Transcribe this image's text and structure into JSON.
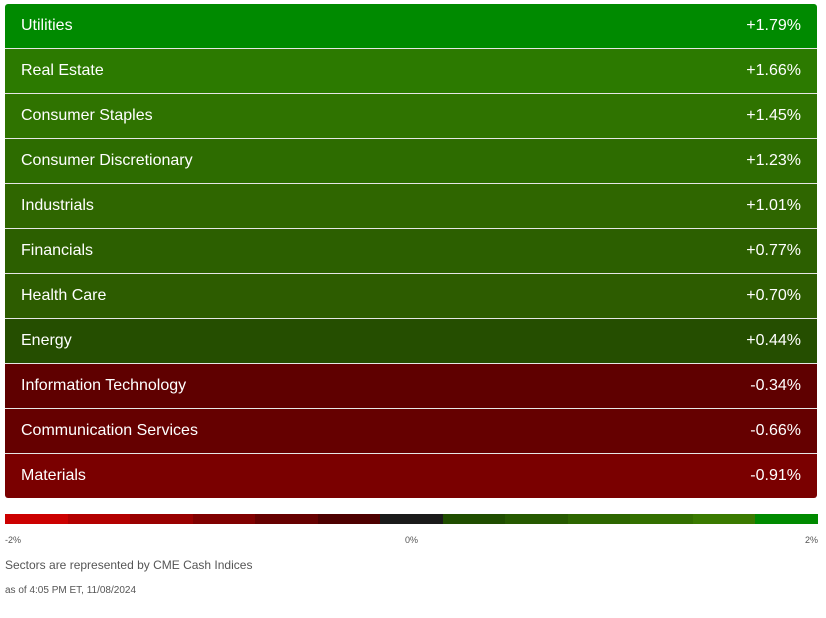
{
  "sectors": [
    {
      "name": "Utilities",
      "change": "+1.79%",
      "color": "#008a00"
    },
    {
      "name": "Real Estate",
      "change": "+1.66%",
      "color": "#2c7a00"
    },
    {
      "name": "Consumer Staples",
      "change": "+1.45%",
      "color": "#2f7300"
    },
    {
      "name": "Consumer Discretionary",
      "change": "+1.23%",
      "color": "#2d6c00"
    },
    {
      "name": "Industrials",
      "change": "+1.01%",
      "color": "#2f6600"
    },
    {
      "name": "Financials",
      "change": "+0.77%",
      "color": "#2c5f00"
    },
    {
      "name": "Health Care",
      "change": "+0.70%",
      "color": "#2d5c00"
    },
    {
      "name": "Energy",
      "change": "+0.44%",
      "color": "#254e00"
    },
    {
      "name": "Information Technology",
      "change": "-0.34%",
      "color": "#5f0000"
    },
    {
      "name": "Communication Services",
      "change": "-0.66%",
      "color": "#650000"
    },
    {
      "name": "Materials",
      "change": "-0.91%",
      "color": "#7a0000"
    }
  ],
  "scale": {
    "colors": [
      "#cc0000",
      "#b30000",
      "#990000",
      "#800000",
      "#660000",
      "#4d0000",
      "#1a1a1a",
      "#1f4d00",
      "#265900",
      "#2d6600",
      "#336f00",
      "#3a7a00",
      "#008a00"
    ],
    "label_min": "-2%",
    "label_mid": "0%",
    "label_max": "2%"
  },
  "footer": {
    "note": "Sectors are represented by CME Cash Indices",
    "as_of": "as of 4:05 PM ET, 11/08/2024"
  }
}
